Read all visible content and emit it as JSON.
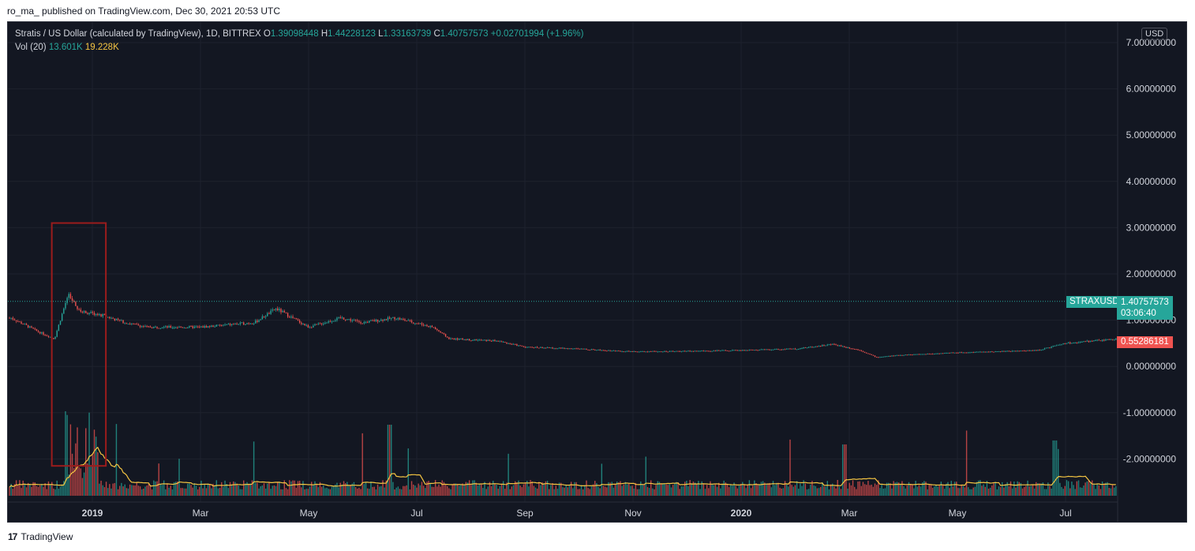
{
  "header": {
    "published_line": "ro_ma_ published on TradingView.com, Dec 30, 2021 20:53 UTC"
  },
  "legend": {
    "title": "Stratis / US Dollar (calculated by TradingView), 1D, BITTREX",
    "o_label": "O",
    "o_value": "1.39098448",
    "h_label": "H",
    "h_value": "1.44228123",
    "l_label": "L",
    "l_value": "1.33163739",
    "c_label": "C",
    "c_value": "1.40757573",
    "change": "+0.02701994 (+1.96%)",
    "vol_label": "Vol (20)",
    "vol_value": "13.601K",
    "vol_ma_value": "19.228K"
  },
  "price_axis": {
    "currency": "USD"
  },
  "labels": {
    "symbol": "STRAXUSD",
    "last_price": "1.40757573",
    "countdown": "03:06:40",
    "other_price": "0.55286181"
  },
  "footer": {
    "brand": "TradingView",
    "logo_text": "17"
  },
  "colors": {
    "background": "#131722",
    "grid": "#1e222d",
    "up": "#26a69a",
    "down": "#ef5350",
    "vol_ma": "#f5c542",
    "highlight_box": "#9b1c1c",
    "text": "#d1d4dc"
  },
  "chart_data": {
    "type": "candlestick",
    "symbol": "STRAXUSD",
    "interval": "1D",
    "y_ticks": [
      7,
      6,
      5,
      4,
      3,
      2,
      1,
      0,
      -1,
      -2
    ],
    "y_tick_labels": [
      "7.00000000",
      "6.00000000",
      "5.00000000",
      "4.00000000",
      "3.00000000",
      "2.00000000",
      "1.00000000",
      "0.00000000",
      "-1.00000000",
      "-2.00000000"
    ],
    "ylim": [
      -2.9,
      7.65
    ],
    "x_ticks": [
      "2019",
      "Mar",
      "May",
      "Jul",
      "Sep",
      "Nov",
      "2020",
      "Mar",
      "May",
      "Jul"
    ],
    "x_tick_months": [
      0,
      2,
      4,
      6,
      8,
      10,
      12,
      14,
      16,
      18
    ],
    "price_path": [
      {
        "m": -1.5,
        "p": 1.05
      },
      {
        "m": -1.0,
        "p": 0.75
      },
      {
        "m": -0.7,
        "p": 0.6
      },
      {
        "m": -0.45,
        "p": 1.55
      },
      {
        "m": -0.25,
        "p": 1.2
      },
      {
        "m": 0.2,
        "p": 1.1
      },
      {
        "m": 0.6,
        "p": 0.95
      },
      {
        "m": 1.0,
        "p": 0.85
      },
      {
        "m": 2.0,
        "p": 0.85
      },
      {
        "m": 3.0,
        "p": 0.95
      },
      {
        "m": 3.4,
        "p": 1.25
      },
      {
        "m": 4.0,
        "p": 0.85
      },
      {
        "m": 4.6,
        "p": 1.05
      },
      {
        "m": 5.0,
        "p": 0.95
      },
      {
        "m": 5.6,
        "p": 1.05
      },
      {
        "m": 6.3,
        "p": 0.85
      },
      {
        "m": 6.6,
        "p": 0.6
      },
      {
        "m": 7.5,
        "p": 0.55
      },
      {
        "m": 8.0,
        "p": 0.42
      },
      {
        "m": 9.0,
        "p": 0.38
      },
      {
        "m": 10.0,
        "p": 0.32
      },
      {
        "m": 11.0,
        "p": 0.33
      },
      {
        "m": 12.0,
        "p": 0.35
      },
      {
        "m": 13.0,
        "p": 0.38
      },
      {
        "m": 13.7,
        "p": 0.48
      },
      {
        "m": 14.2,
        "p": 0.35
      },
      {
        "m": 14.5,
        "p": 0.2
      },
      {
        "m": 15.0,
        "p": 0.25
      },
      {
        "m": 16.0,
        "p": 0.3
      },
      {
        "m": 17.0,
        "p": 0.33
      },
      {
        "m": 17.5,
        "p": 0.35
      },
      {
        "m": 18.0,
        "p": 0.5
      },
      {
        "m": 18.5,
        "p": 0.55
      },
      {
        "m": 19.0,
        "p": 0.6
      },
      {
        "m": 19.2,
        "p": 0.55
      }
    ],
    "last_price": 1.40757573,
    "marked_price": 0.55286181,
    "volume_ma_window": 20,
    "highlight_box": {
      "m_start": -0.75,
      "m_end": 0.25,
      "p_top": 3.1,
      "p_bottom": -2.15
    }
  }
}
